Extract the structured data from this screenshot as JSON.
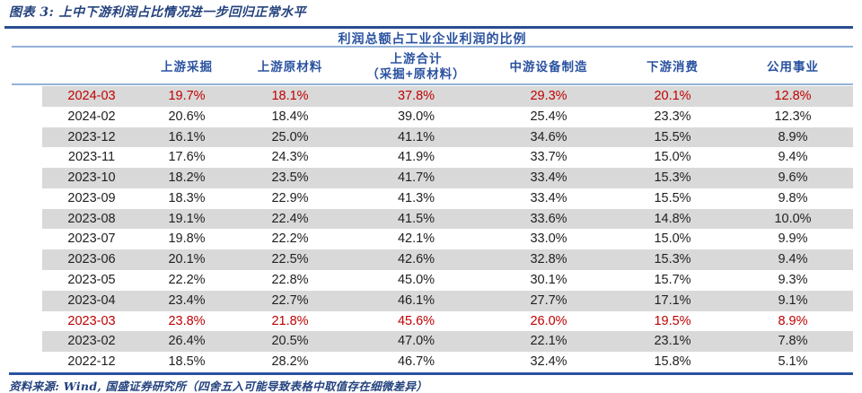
{
  "figure": {
    "title": "图表 3: 上中下游利润占比情况进一步回归正常水平",
    "source_note": "资料来源: Wind, 国盛证券研究所（四舍五入可能导致表格中取值存在细微差异）"
  },
  "colors": {
    "navy_rule": "#2A4C8F",
    "header_blue": "#2A52A0",
    "light_rule": "#95B3D7",
    "highlight_red": "#C00000",
    "stripe_gray": "#D9D9D9",
    "body_text": "#1F1F1F"
  },
  "table": {
    "span_header": "利润总额占工业企业利润的比例",
    "columns": [
      {
        "label": "上游采掘"
      },
      {
        "label": "上游原材料"
      },
      {
        "label": "上游合计",
        "label2": "（采掘+原材料）"
      },
      {
        "label": "中游设备制造"
      },
      {
        "label": "下游消费"
      },
      {
        "label": "公用事业"
      }
    ],
    "rows": [
      {
        "date": "2024-03",
        "values": [
          "19.7%",
          "18.1%",
          "37.8%",
          "29.3%",
          "20.1%",
          "12.8%"
        ],
        "highlight": true
      },
      {
        "date": "2024-02",
        "values": [
          "20.6%",
          "18.4%",
          "39.0%",
          "25.4%",
          "23.3%",
          "12.3%"
        ],
        "highlight": false
      },
      {
        "date": "2023-12",
        "values": [
          "16.1%",
          "25.0%",
          "41.1%",
          "34.6%",
          "15.5%",
          "8.9%"
        ],
        "highlight": false
      },
      {
        "date": "2023-11",
        "values": [
          "17.6%",
          "24.3%",
          "41.9%",
          "33.7%",
          "15.0%",
          "9.4%"
        ],
        "highlight": false
      },
      {
        "date": "2023-10",
        "values": [
          "18.2%",
          "23.5%",
          "41.7%",
          "33.4%",
          "15.3%",
          "9.6%"
        ],
        "highlight": false
      },
      {
        "date": "2023-09",
        "values": [
          "18.3%",
          "22.9%",
          "41.3%",
          "33.4%",
          "15.5%",
          "9.8%"
        ],
        "highlight": false
      },
      {
        "date": "2023-08",
        "values": [
          "19.1%",
          "22.4%",
          "41.5%",
          "33.6%",
          "14.8%",
          "10.0%"
        ],
        "highlight": false
      },
      {
        "date": "2023-07",
        "values": [
          "19.8%",
          "22.2%",
          "42.1%",
          "33.0%",
          "15.0%",
          "9.9%"
        ],
        "highlight": false
      },
      {
        "date": "2023-06",
        "values": [
          "20.1%",
          "22.5%",
          "42.6%",
          "32.8%",
          "15.3%",
          "9.4%"
        ],
        "highlight": false
      },
      {
        "date": "2023-05",
        "values": [
          "22.2%",
          "22.8%",
          "45.0%",
          "30.1%",
          "15.7%",
          "9.3%"
        ],
        "highlight": false
      },
      {
        "date": "2023-04",
        "values": [
          "23.4%",
          "22.7%",
          "46.1%",
          "27.7%",
          "17.1%",
          "9.1%"
        ],
        "highlight": false
      },
      {
        "date": "2023-03",
        "values": [
          "23.8%",
          "21.8%",
          "45.6%",
          "26.0%",
          "19.5%",
          "8.9%"
        ],
        "highlight": true
      },
      {
        "date": "2023-02",
        "values": [
          "26.4%",
          "20.5%",
          "47.0%",
          "22.1%",
          "23.1%",
          "7.8%"
        ],
        "highlight": false
      },
      {
        "date": "2022-12",
        "values": [
          "18.5%",
          "28.2%",
          "46.7%",
          "32.4%",
          "15.8%",
          "5.1%"
        ],
        "highlight": false
      }
    ]
  },
  "chart_data": {
    "type": "table",
    "title": "利润总额占工业企业利润的比例",
    "unit": "%",
    "categories": [
      "2024-03",
      "2024-02",
      "2023-12",
      "2023-11",
      "2023-10",
      "2023-09",
      "2023-08",
      "2023-07",
      "2023-06",
      "2023-05",
      "2023-04",
      "2023-03",
      "2023-02",
      "2022-12"
    ],
    "series": [
      {
        "name": "上游采掘",
        "values": [
          19.7,
          20.6,
          16.1,
          17.6,
          18.2,
          18.3,
          19.1,
          19.8,
          20.1,
          22.2,
          23.4,
          23.8,
          26.4,
          18.5
        ]
      },
      {
        "name": "上游原材料",
        "values": [
          18.1,
          18.4,
          25.0,
          24.3,
          23.5,
          22.9,
          22.4,
          22.2,
          22.5,
          22.8,
          22.7,
          21.8,
          20.5,
          28.2
        ]
      },
      {
        "name": "上游合计（采掘+原材料）",
        "values": [
          37.8,
          39.0,
          41.1,
          41.9,
          41.7,
          41.3,
          41.5,
          42.1,
          42.6,
          45.0,
          46.1,
          45.6,
          47.0,
          46.7
        ]
      },
      {
        "name": "中游设备制造",
        "values": [
          29.3,
          25.4,
          34.6,
          33.7,
          33.4,
          33.4,
          33.6,
          33.0,
          32.8,
          30.1,
          27.7,
          26.0,
          22.1,
          32.4
        ]
      },
      {
        "name": "下游消费",
        "values": [
          20.1,
          23.3,
          15.5,
          15.0,
          15.3,
          15.5,
          14.8,
          15.0,
          15.3,
          15.7,
          17.1,
          19.5,
          23.1,
          15.8
        ]
      },
      {
        "name": "公用事业",
        "values": [
          12.8,
          12.3,
          8.9,
          9.4,
          9.6,
          9.8,
          10.0,
          9.9,
          9.4,
          9.3,
          9.1,
          8.9,
          7.8,
          5.1
        ]
      }
    ],
    "highlighted_rows": [
      "2024-03",
      "2023-03"
    ]
  }
}
